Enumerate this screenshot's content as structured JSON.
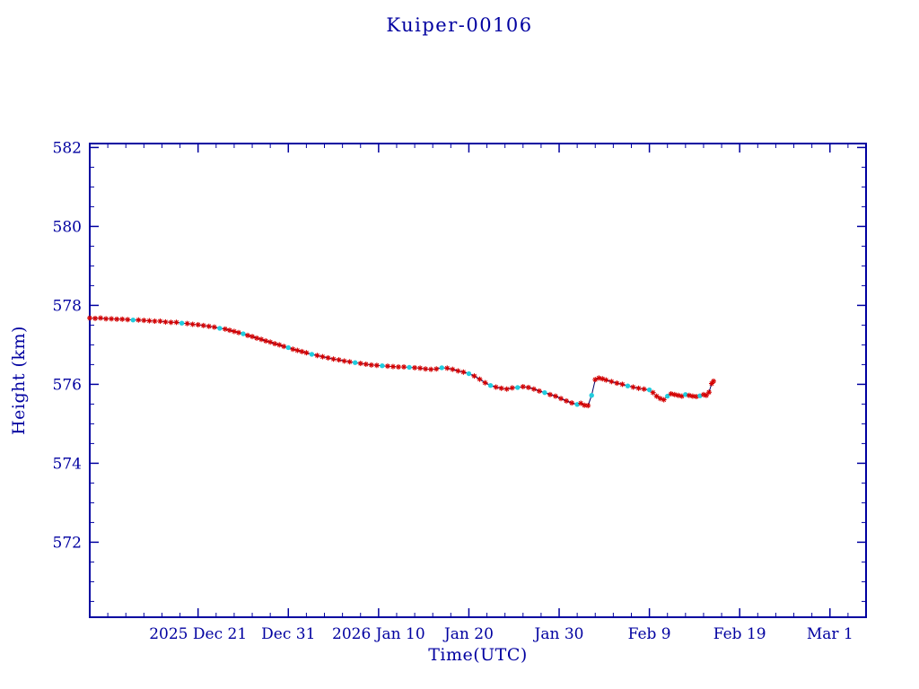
{
  "colors": {
    "axis": "#0000a0",
    "line": "#000066",
    "marker_red": "#d40000",
    "marker_cyan": "#22ccdd"
  },
  "chart_data": {
    "type": "line",
    "title": "Kuiper-00106",
    "xlabel": "Time(UTC)",
    "ylabel": "Height (km)",
    "x_unit": "days since 2025-12-09 (estimated from axis)",
    "xlim": [
      0,
      86
    ],
    "ylim": [
      570.1,
      582.1
    ],
    "grid": false,
    "legend": "none",
    "yticks": [
      572,
      574,
      576,
      578,
      580,
      582
    ],
    "xticks": [
      {
        "d": 12,
        "label": "2025 Dec 21"
      },
      {
        "d": 22,
        "label": "Dec 31"
      },
      {
        "d": 32,
        "label": "2026 Jan 10"
      },
      {
        "d": 42,
        "label": "Jan 20"
      },
      {
        "d": 52,
        "label": "Jan 30"
      },
      {
        "d": 62,
        "label": "Feb 9"
      },
      {
        "d": 72,
        "label": "Feb 19"
      },
      {
        "d": 82,
        "label": "Mar 1"
      }
    ],
    "points": [
      [
        0.0,
        577.68
      ],
      [
        0.6,
        577.67
      ],
      [
        1.2,
        577.68
      ],
      [
        1.8,
        577.66
      ],
      [
        2.4,
        577.66
      ],
      [
        3.0,
        577.65
      ],
      [
        3.6,
        577.65
      ],
      [
        4.2,
        577.64
      ],
      [
        4.8,
        577.63
      ],
      [
        5.4,
        577.63
      ],
      [
        6.0,
        577.62
      ],
      [
        6.6,
        577.61
      ],
      [
        7.2,
        577.6
      ],
      [
        7.8,
        577.6
      ],
      [
        8.4,
        577.58
      ],
      [
        9.0,
        577.57
      ],
      [
        9.6,
        577.57
      ],
      [
        10.2,
        577.55
      ],
      [
        10.8,
        577.54
      ],
      [
        11.4,
        577.52
      ],
      [
        12.0,
        577.51
      ],
      [
        12.6,
        577.49
      ],
      [
        13.2,
        577.47
      ],
      [
        13.8,
        577.45
      ],
      [
        14.4,
        577.42
      ],
      [
        15.0,
        577.4
      ],
      [
        15.5,
        577.37
      ],
      [
        16.0,
        577.34
      ],
      [
        16.5,
        577.31
      ],
      [
        17.0,
        577.28
      ],
      [
        17.5,
        577.24
      ],
      [
        18.0,
        577.21
      ],
      [
        18.5,
        577.17
      ],
      [
        19.0,
        577.14
      ],
      [
        19.5,
        577.1
      ],
      [
        20.0,
        577.07
      ],
      [
        20.5,
        577.03
      ],
      [
        21.0,
        577.0
      ],
      [
        21.5,
        576.96
      ],
      [
        22.0,
        576.93
      ],
      [
        22.5,
        576.89
      ],
      [
        23.0,
        576.86
      ],
      [
        23.5,
        576.83
      ],
      [
        24.0,
        576.8
      ],
      [
        24.6,
        576.76
      ],
      [
        25.2,
        576.73
      ],
      [
        25.8,
        576.7
      ],
      [
        26.4,
        576.67
      ],
      [
        27.0,
        576.64
      ],
      [
        27.6,
        576.62
      ],
      [
        28.2,
        576.59
      ],
      [
        28.8,
        576.57
      ],
      [
        29.4,
        576.55
      ],
      [
        30.0,
        576.53
      ],
      [
        30.6,
        576.51
      ],
      [
        31.2,
        576.49
      ],
      [
        31.8,
        576.48
      ],
      [
        32.4,
        576.47
      ],
      [
        33.0,
        576.46
      ],
      [
        33.6,
        576.45
      ],
      [
        34.2,
        576.44
      ],
      [
        34.8,
        576.44
      ],
      [
        35.4,
        576.43
      ],
      [
        36.0,
        576.42
      ],
      [
        36.6,
        576.41
      ],
      [
        37.2,
        576.39
      ],
      [
        37.8,
        576.38
      ],
      [
        38.4,
        576.39
      ],
      [
        39.0,
        576.42
      ],
      [
        39.6,
        576.41
      ],
      [
        40.2,
        576.38
      ],
      [
        40.8,
        576.34
      ],
      [
        41.4,
        576.31
      ],
      [
        42.0,
        576.27
      ],
      [
        42.6,
        576.21
      ],
      [
        43.2,
        576.13
      ],
      [
        43.8,
        576.04
      ],
      [
        44.4,
        575.97
      ],
      [
        45.0,
        575.93
      ],
      [
        45.6,
        575.9
      ],
      [
        46.2,
        575.88
      ],
      [
        46.8,
        575.91
      ],
      [
        47.4,
        575.92
      ],
      [
        48.0,
        575.94
      ],
      [
        48.6,
        575.92
      ],
      [
        49.2,
        575.88
      ],
      [
        49.8,
        575.83
      ],
      [
        50.4,
        575.79
      ],
      [
        51.0,
        575.74
      ],
      [
        51.6,
        575.7
      ],
      [
        52.2,
        575.64
      ],
      [
        52.8,
        575.58
      ],
      [
        53.4,
        575.53
      ],
      [
        54.0,
        575.49
      ],
      [
        54.4,
        575.52
      ],
      [
        54.8,
        575.47
      ],
      [
        55.2,
        575.46
      ],
      [
        55.6,
        575.72
      ],
      [
        56.0,
        576.12
      ],
      [
        56.4,
        576.16
      ],
      [
        56.8,
        576.14
      ],
      [
        57.2,
        576.11
      ],
      [
        57.8,
        576.07
      ],
      [
        58.4,
        576.03
      ],
      [
        59.0,
        576.0
      ],
      [
        59.6,
        575.96
      ],
      [
        60.2,
        575.93
      ],
      [
        60.8,
        575.9
      ],
      [
        61.4,
        575.88
      ],
      [
        62.0,
        575.86
      ],
      [
        62.4,
        575.79
      ],
      [
        62.8,
        575.7
      ],
      [
        63.2,
        575.64
      ],
      [
        63.6,
        575.61
      ],
      [
        64.0,
        575.7
      ],
      [
        64.4,
        575.76
      ],
      [
        64.8,
        575.74
      ],
      [
        65.2,
        575.72
      ],
      [
        65.6,
        575.7
      ],
      [
        66.0,
        575.74
      ],
      [
        66.4,
        575.72
      ],
      [
        66.8,
        575.7
      ],
      [
        67.2,
        575.69
      ],
      [
        67.6,
        575.71
      ],
      [
        68.0,
        575.74
      ],
      [
        68.3,
        575.72
      ],
      [
        68.6,
        575.8
      ],
      [
        68.9,
        576.02
      ],
      [
        69.1,
        576.08
      ]
    ],
    "cyan_indices": [
      8,
      17,
      24,
      29,
      39,
      44,
      52,
      57,
      62,
      68,
      73,
      77,
      82,
      87,
      93,
      97,
      105,
      109,
      114,
      119,
      123
    ]
  }
}
